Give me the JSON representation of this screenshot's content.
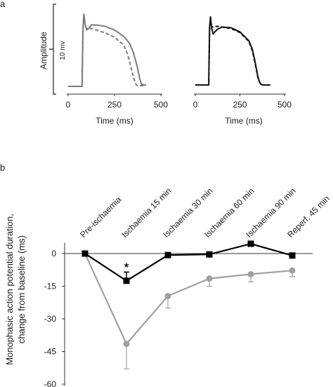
{
  "chart_data": [
    {
      "panel_label": "a",
      "type": "line",
      "xlabel": "Time (ms)",
      "ylabel": "Amplitude",
      "scale_bar_label": "10 mv",
      "xlim": [
        0,
        500
      ],
      "xticks": [
        0,
        250,
        500
      ],
      "series": [
        {
          "color": "#7a7a7a",
          "dashed": false,
          "x": [
            0,
            60,
            75,
            80,
            85,
            92,
            100,
            110,
            125,
            150,
            200,
            250,
            300,
            330,
            350,
            370,
            385,
            395,
            410,
            420
          ],
          "y": [
            0,
            0,
            0,
            0.8,
            1.0,
            0.85,
            0.78,
            0.8,
            0.85,
            0.85,
            0.83,
            0.78,
            0.69,
            0.6,
            0.48,
            0.3,
            0.12,
            0.03,
            0.02,
            0.02
          ]
        },
        {
          "color": "#7a7a7a",
          "dashed": true,
          "x": [
            0,
            60,
            75,
            80,
            85,
            92,
            100,
            110,
            125,
            150,
            200,
            250,
            300,
            320,
            340,
            355,
            365,
            372,
            380,
            420
          ],
          "y": [
            0,
            0,
            0,
            0.8,
            0.98,
            0.85,
            0.8,
            0.8,
            0.8,
            0.78,
            0.74,
            0.68,
            0.57,
            0.45,
            0.25,
            0.1,
            0.03,
            0.015,
            0.01,
            0.01
          ]
        }
      ]
    },
    {
      "type": "line",
      "xlabel": "Time (ms)",
      "xlim": [
        0,
        500
      ],
      "xticks": [
        0,
        250,
        500
      ],
      "series": [
        {
          "color": "#111111",
          "dashed": false,
          "x": [
            0,
            60,
            75,
            80,
            85,
            92,
            100,
            110,
            125,
            150,
            200,
            250,
            300,
            320,
            335,
            350,
            360,
            368,
            380,
            420
          ],
          "y": [
            0,
            0,
            0,
            0.85,
            1.0,
            0.83,
            0.75,
            0.78,
            0.82,
            0.85,
            0.84,
            0.78,
            0.65,
            0.52,
            0.34,
            0.13,
            0.04,
            0.01,
            0.0,
            0.0
          ]
        },
        {
          "color": "#111111",
          "dashed": true,
          "x": [
            0,
            60,
            75,
            80,
            85,
            92,
            100,
            110,
            125,
            150,
            200,
            250,
            300,
            320,
            335,
            350,
            360,
            368,
            380,
            420
          ],
          "y": [
            0,
            0,
            0,
            0.8,
            0.92,
            0.86,
            0.85,
            0.86,
            0.86,
            0.85,
            0.83,
            0.77,
            0.64,
            0.5,
            0.32,
            0.12,
            0.04,
            0.01,
            0.0,
            0.0
          ]
        }
      ]
    },
    {
      "panel_label": "b",
      "type": "line",
      "ylabel": [
        "Monophasic action potential duration,",
        "change from baseline (ms)"
      ],
      "categories": [
        "Pre-ischaemia",
        "Ischaemia 15 min",
        "Ischaemia 30 min",
        "Ischaemia 60 min",
        "Ischaemia 90 min",
        "Reperf. 45 min"
      ],
      "ylim": [
        -60,
        5
      ],
      "yticks": [
        0,
        -15,
        -30,
        -45,
        -60
      ],
      "series": [
        {
          "color": "#000000",
          "marker": "square",
          "values": [
            0,
            -12.5,
            -0.7,
            -0.4,
            4.5,
            -0.9
          ],
          "error_up": [
            0,
            4,
            0,
            0,
            0,
            0
          ],
          "error_down": [
            0,
            0,
            0,
            0,
            0,
            0
          ]
        },
        {
          "color": "#a0a0a0",
          "marker": "circle",
          "values": [
            0,
            -41.5,
            -19.5,
            -11.5,
            -9.5,
            -7.8
          ],
          "error_up": [
            0,
            0,
            0,
            0,
            0,
            0
          ],
          "error_down": [
            0,
            11.5,
            5.5,
            3.5,
            3.5,
            2.8
          ]
        }
      ],
      "annotation": "*"
    }
  ]
}
